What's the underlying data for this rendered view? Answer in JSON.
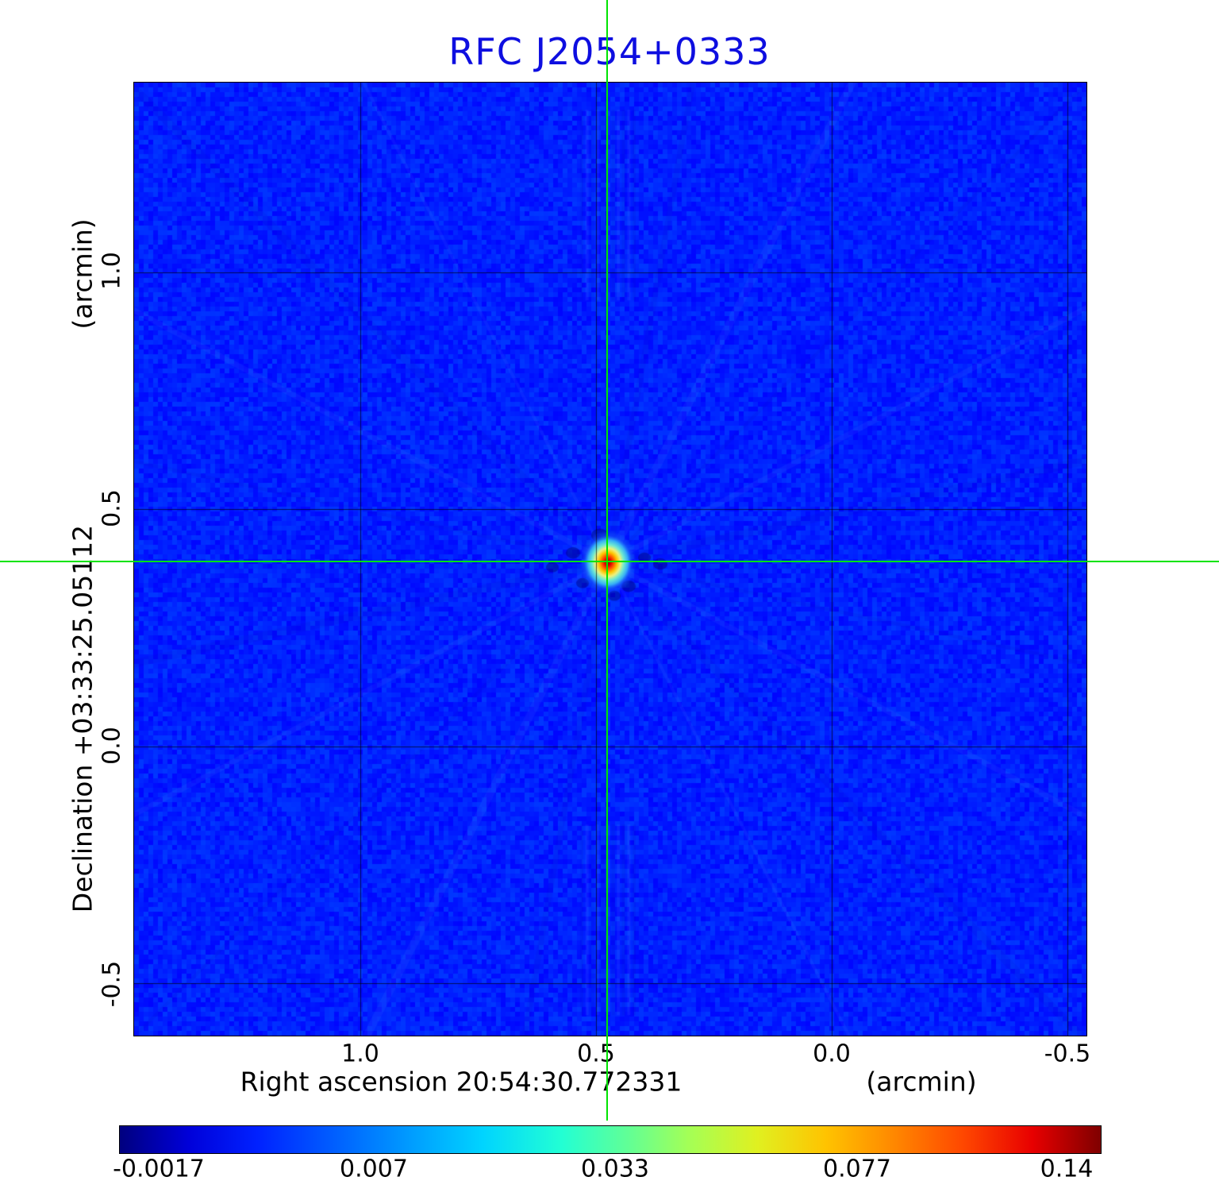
{
  "title": {
    "text": "RFC J2054+0333",
    "color": "#0e0ee0"
  },
  "axes": {
    "y": {
      "unit_label": "(arcmin)",
      "axis_label": "Declination  +03:33:25.05112",
      "ticks": [
        "1.0",
        "0.5",
        "0.0",
        "-0.5"
      ]
    },
    "x": {
      "unit_label": "(arcmin)",
      "axis_label": "Right ascension  20:54:30.772331",
      "ticks": [
        "1.0",
        "0.5",
        "0.0",
        "-0.5"
      ]
    }
  },
  "colorbar": {
    "ticks": [
      "-0.0017",
      "0.007",
      "0.033",
      "0.077",
      "0.14"
    ],
    "colormap": "jet"
  },
  "chart_data": {
    "type": "heatmap",
    "title": "RFC J2054+0333",
    "xlabel": "Right ascension 20:54:30.772331 (arcmin)",
    "ylabel": "Declination +03:33:25.05112 (arcmin)",
    "x_ticks": [
      1.0,
      0.5,
      0.0,
      -0.5
    ],
    "y_ticks": [
      1.0,
      0.5,
      0.0,
      -0.5
    ],
    "xlim_left": 1.48,
    "xlim_right": -0.54,
    "ylim_top": 1.4,
    "ylim_bottom": -0.61,
    "grid": true,
    "colormap": "jet",
    "scale": "sqrt",
    "value_min": -0.0017,
    "value_max": 0.14,
    "colorbar_ticks": [
      -0.0017,
      0.007,
      0.033,
      0.077,
      0.14
    ],
    "background_level": 0.0,
    "source": {
      "ra_offset_arcmin": 0.475,
      "dec_offset_arcmin": 0.388,
      "peak": 0.14
    },
    "crosshair_color": "#00e400",
    "grid_color": "#000000"
  }
}
